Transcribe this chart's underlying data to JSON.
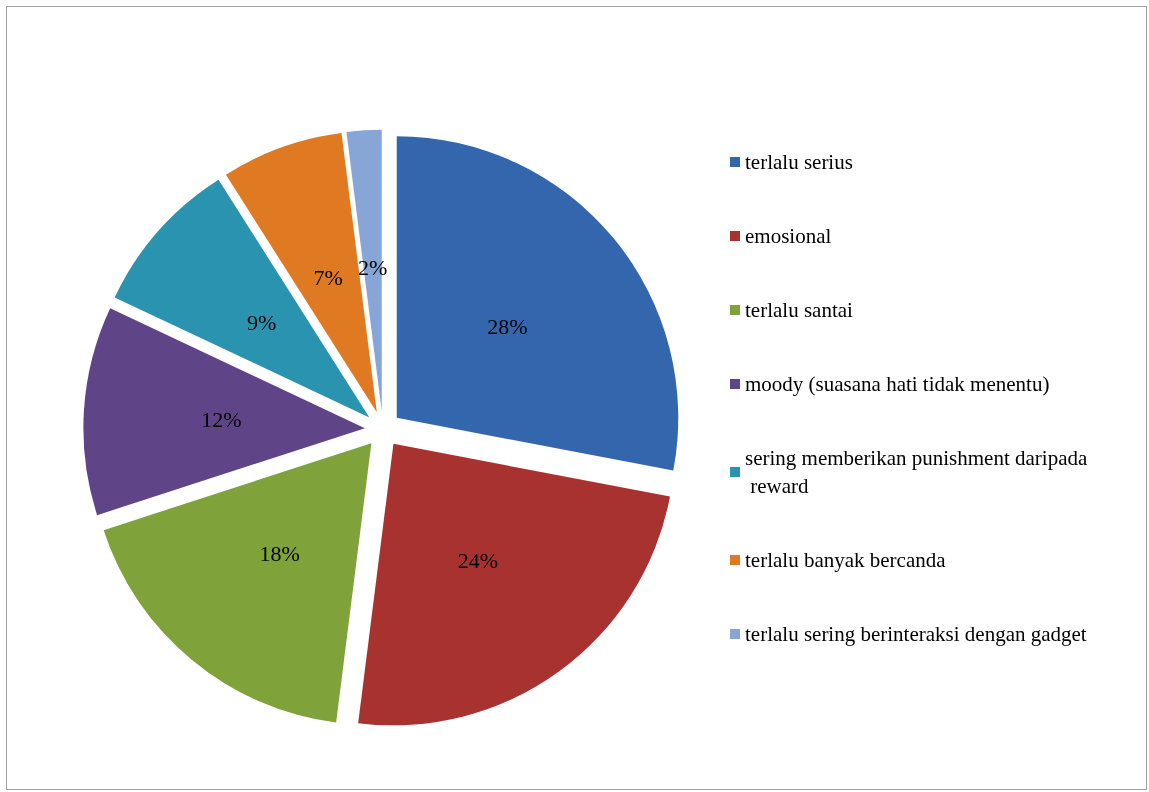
{
  "chart_data": {
    "type": "pie",
    "categories": [
      "terlalu serius",
      "emosional",
      "terlalu santai",
      "moody (suasana hati tidak menentu)",
      "sering memberikan punishment daripada reward",
      "terlalu banyak bercanda",
      "terlalu sering berinteraksi dengan gadget"
    ],
    "values": [
      28,
      24,
      18,
      12,
      9,
      7,
      2
    ],
    "value_labels": [
      "28%",
      "24%",
      "18%",
      "12%",
      "9%",
      "7%",
      "2%"
    ],
    "colors": [
      "#3466ad",
      "#a8322f",
      "#7fa23a",
      "#5f4588",
      "#2a93b0",
      "#e07a22",
      "#87a5d6"
    ],
    "legend": "right"
  }
}
